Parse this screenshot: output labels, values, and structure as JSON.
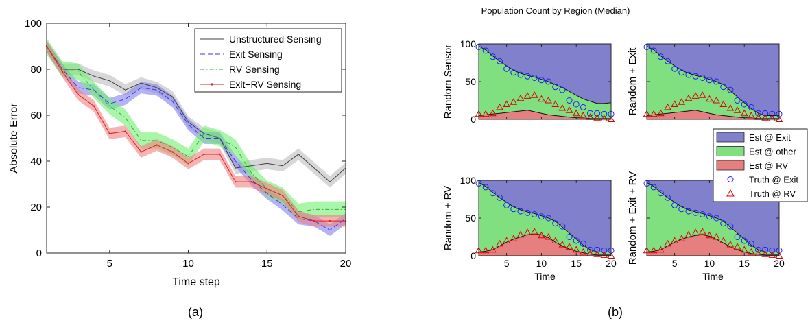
{
  "figure": {
    "caption_a": "(a)",
    "caption_b": "(b)",
    "title_b": "Population Count by Region (Median)"
  },
  "colors": {
    "unstructured": "#404040",
    "exit": "#3a3ae0",
    "rv": "#33aa33",
    "exit_rv": "#e02020",
    "band_unstructured": "#bdbdbd",
    "band_exit": "#8080f0",
    "band_rv": "#70ee70",
    "band_exit_rv": "#f08080",
    "area_exit": "#8080cc",
    "area_other": "#80e080",
    "area_rv": "#e68080",
    "truth_exit": "#2020ff",
    "truth_rv": "#dd0000"
  },
  "chart_data": [
    {
      "type": "line",
      "xlabel": "Time step",
      "ylabel": "Absolute Error",
      "xlim": [
        1,
        20
      ],
      "ylim": [
        0,
        100
      ],
      "xticks": [
        5,
        10,
        15,
        20
      ],
      "yticks": [
        0,
        20,
        40,
        60,
        80,
        100
      ],
      "grid": false,
      "legend": "top-right",
      "x": [
        1,
        2,
        3,
        4,
        5,
        6,
        7,
        8,
        9,
        10,
        11,
        12,
        13,
        14,
        15,
        16,
        17,
        18,
        19,
        20
      ],
      "series": [
        {
          "name": "Unstructured Sensing",
          "key": "unstructured",
          "values": [
            90,
            80,
            80,
            77,
            75,
            71,
            74,
            72,
            68,
            57,
            52,
            50,
            37,
            38,
            39,
            38,
            43,
            37,
            31,
            37
          ],
          "band": 2.5
        },
        {
          "name": "Exit Sensing",
          "key": "exit",
          "values": [
            90,
            80,
            72,
            71,
            65,
            67,
            72,
            71,
            66,
            56,
            50,
            50,
            40,
            32,
            26,
            21,
            15,
            14,
            10,
            15
          ],
          "band": 2.5
        },
        {
          "name": "RV Sensing",
          "key": "rv",
          "values": [
            90,
            80,
            79,
            71,
            64,
            59,
            49,
            49,
            46,
            42,
            52,
            50,
            46,
            35,
            28,
            25,
            18,
            19,
            19,
            19
          ],
          "band": 3.5
        },
        {
          "name": "Exit+RV Sensing",
          "key": "exit_rv",
          "values": [
            90,
            79,
            69,
            64,
            52,
            53,
            44,
            47,
            44,
            39,
            43,
            43,
            31,
            31,
            28,
            25,
            16,
            14,
            14,
            14
          ],
          "band": 2.5
        }
      ]
    },
    {
      "type": "area",
      "ylabel": "Random Sensor",
      "xlabel": "",
      "xlim": [
        1,
        20
      ],
      "ylim": [
        0,
        100
      ],
      "xticks": [
        5,
        10,
        15,
        20
      ],
      "yticks": [
        0,
        50,
        100
      ],
      "x": [
        1,
        2,
        3,
        4,
        5,
        6,
        7,
        8,
        9,
        10,
        11,
        12,
        13,
        14,
        15,
        16,
        17,
        18,
        19,
        20
      ],
      "est_rv": [
        5,
        6,
        7,
        8,
        9,
        10,
        11,
        12,
        10,
        8,
        6,
        5,
        4,
        3,
        2,
        2,
        1,
        1,
        1,
        1
      ],
      "est_rv_plus_other": [
        97,
        92,
        84,
        77,
        71,
        65,
        61,
        58,
        56,
        53,
        50,
        46,
        42,
        37,
        32,
        27,
        24,
        21,
        21,
        22
      ],
      "truth_exit": [
        96,
        91,
        83,
        77,
        67,
        62,
        59,
        57,
        55,
        52,
        50,
        43,
        39,
        25,
        20,
        16,
        8,
        8,
        7,
        7
      ],
      "truth_rv": [
        7,
        7,
        8,
        16,
        20,
        23,
        28,
        31,
        32,
        27,
        25,
        20,
        15,
        12,
        8,
        5,
        3,
        2,
        1,
        0
      ]
    },
    {
      "type": "area",
      "ylabel": "Random + Exit",
      "xlabel": "",
      "xlim": [
        1,
        20
      ],
      "ylim": [
        0,
        100
      ],
      "xticks": [
        5,
        10,
        15,
        20
      ],
      "yticks": [
        0,
        50,
        100
      ],
      "x": [
        1,
        2,
        3,
        4,
        5,
        6,
        7,
        8,
        9,
        10,
        11,
        12,
        13,
        14,
        15,
        16,
        17,
        18,
        19,
        20
      ],
      "est_rv": [
        5,
        6,
        7,
        8,
        9,
        10,
        11,
        12,
        10,
        8,
        6,
        5,
        4,
        3,
        2,
        2,
        1,
        1,
        1,
        1
      ],
      "est_rv_plus_other": [
        97,
        92,
        84,
        77,
        71,
        65,
        61,
        58,
        56,
        53,
        50,
        46,
        38,
        30,
        22,
        14,
        8,
        5,
        5,
        5
      ],
      "truth_exit": [
        96,
        91,
        83,
        77,
        67,
        62,
        59,
        57,
        55,
        52,
        50,
        43,
        39,
        25,
        20,
        16,
        8,
        8,
        7,
        7
      ],
      "truth_rv": [
        7,
        7,
        8,
        16,
        20,
        23,
        28,
        31,
        32,
        27,
        25,
        20,
        15,
        12,
        8,
        5,
        3,
        2,
        1,
        0
      ]
    },
    {
      "type": "area",
      "ylabel": "Random + RV",
      "xlabel": "Time",
      "xlim": [
        1,
        20
      ],
      "ylim": [
        0,
        100
      ],
      "xticks": [
        5,
        10,
        15,
        20
      ],
      "yticks": [
        0,
        50,
        100
      ],
      "x": [
        1,
        2,
        3,
        4,
        5,
        6,
        7,
        8,
        9,
        10,
        11,
        12,
        13,
        14,
        15,
        16,
        17,
        18,
        19,
        20
      ],
      "est_rv": [
        5,
        6,
        8,
        13,
        18,
        22,
        25,
        28,
        29,
        28,
        24,
        18,
        13,
        9,
        6,
        4,
        2,
        1,
        1,
        1
      ],
      "est_rv_plus_other": [
        97,
        92,
        84,
        77,
        71,
        65,
        61,
        58,
        56,
        53,
        50,
        46,
        38,
        30,
        22,
        14,
        8,
        5,
        5,
        5
      ],
      "truth_exit": [
        96,
        91,
        83,
        77,
        67,
        62,
        59,
        57,
        55,
        52,
        50,
        43,
        39,
        25,
        20,
        16,
        8,
        8,
        7,
        7
      ],
      "truth_rv": [
        7,
        7,
        8,
        16,
        20,
        23,
        28,
        31,
        32,
        27,
        25,
        20,
        15,
        12,
        8,
        5,
        3,
        2,
        1,
        0
      ]
    },
    {
      "type": "area",
      "ylabel": "Random + Exit + RV",
      "xlabel": "Time",
      "xlim": [
        1,
        20
      ],
      "ylim": [
        0,
        100
      ],
      "xticks": [
        5,
        10,
        15,
        20
      ],
      "yticks": [
        0,
        50,
        100
      ],
      "x": [
        1,
        2,
        3,
        4,
        5,
        6,
        7,
        8,
        9,
        10,
        11,
        12,
        13,
        14,
        15,
        16,
        17,
        18,
        19,
        20
      ],
      "est_rv": [
        5,
        6,
        8,
        13,
        18,
        22,
        25,
        27,
        28,
        26,
        22,
        17,
        12,
        8,
        5,
        3,
        2,
        1,
        1,
        1
      ],
      "est_rv_plus_other": [
        97,
        92,
        84,
        77,
        71,
        65,
        61,
        58,
        56,
        53,
        50,
        46,
        38,
        30,
        22,
        14,
        8,
        5,
        5,
        5
      ],
      "truth_exit": [
        96,
        91,
        83,
        77,
        67,
        62,
        59,
        57,
        55,
        52,
        50,
        43,
        39,
        25,
        20,
        16,
        8,
        8,
        7,
        7
      ],
      "truth_rv": [
        7,
        7,
        8,
        16,
        20,
        23,
        28,
        31,
        32,
        27,
        25,
        20,
        15,
        12,
        8,
        5,
        3,
        2,
        1,
        0
      ]
    }
  ],
  "legend_b": [
    {
      "label": "Est @ Exit",
      "kind": "patch",
      "key": "area_exit"
    },
    {
      "label": "Est @ other",
      "kind": "patch",
      "key": "area_other"
    },
    {
      "label": "Est @ RV",
      "kind": "patch",
      "key": "area_rv"
    },
    {
      "label": "Truth @ Exit",
      "kind": "circle",
      "key": "truth_exit"
    },
    {
      "label": "Truth @ RV",
      "kind": "triangle",
      "key": "truth_rv"
    }
  ]
}
